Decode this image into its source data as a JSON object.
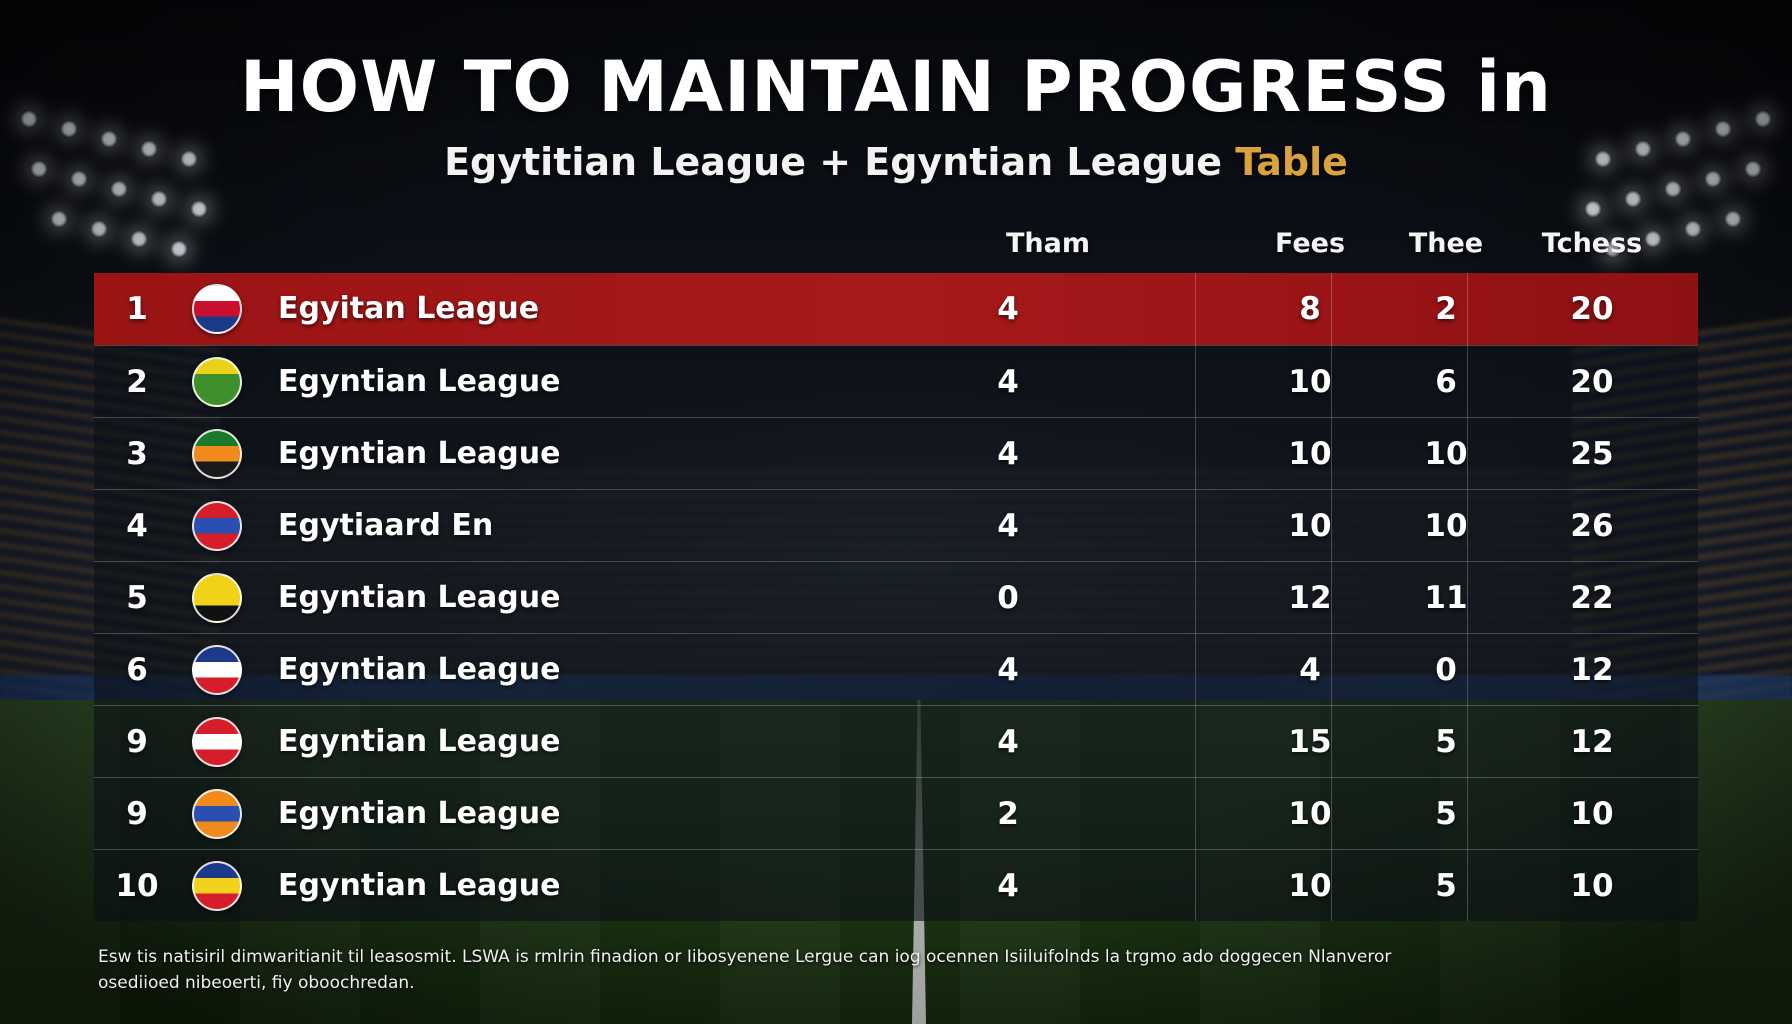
{
  "header": {
    "title": "HOW TO MAINTAIN PROGRESS in",
    "subtitle_main": "Egytitian League + Egyntian League ",
    "subtitle_accent": "Table"
  },
  "columns": [
    "Tham",
    "Fees",
    "Thee",
    "Tchess"
  ],
  "colors": {
    "highlight_row": "#a8191b",
    "accent": "#d9a23c"
  },
  "rows": [
    {
      "pos": "1",
      "team": "Egyitan League",
      "badge_colors": [
        "#ffffff",
        "#c8102e",
        "#1d3a8a"
      ],
      "v": [
        "4",
        "8",
        "2",
        "20"
      ]
    },
    {
      "pos": "2",
      "team": "Egyntian League",
      "badge_colors": [
        "#e8d21a",
        "#3f8f2a",
        "#3f8f2a"
      ],
      "v": [
        "4",
        "10",
        "6",
        "20"
      ]
    },
    {
      "pos": "3",
      "team": "Egyntian League",
      "badge_colors": [
        "#1a7a2a",
        "#f08a1c",
        "#1a1a1a"
      ],
      "v": [
        "4",
        "10",
        "10",
        "25"
      ]
    },
    {
      "pos": "4",
      "team": "Egytiaard En",
      "badge_colors": [
        "#d61e2a",
        "#2a4fb0",
        "#d61e2a"
      ],
      "v": [
        "4",
        "10",
        "10",
        "26"
      ]
    },
    {
      "pos": "5",
      "team": "Egyntian League",
      "badge_colors": [
        "#f0d21a",
        "#f0d21a",
        "#111111"
      ],
      "v": [
        "0",
        "12",
        "11",
        "22"
      ]
    },
    {
      "pos": "6",
      "team": "Egyntian League",
      "badge_colors": [
        "#1d3a8a",
        "#ffffff",
        "#d61e2a"
      ],
      "v": [
        "4",
        "4",
        "0",
        "12"
      ]
    },
    {
      "pos": "9",
      "team": "Egyntian League",
      "badge_colors": [
        "#d61e2a",
        "#ffffff",
        "#d61e2a"
      ],
      "v": [
        "4",
        "15",
        "5",
        "12"
      ]
    },
    {
      "pos": "9",
      "team": "Egyntian League",
      "badge_colors": [
        "#f08a1c",
        "#2a4fb0",
        "#f08a1c"
      ],
      "v": [
        "2",
        "10",
        "5",
        "10"
      ]
    },
    {
      "pos": "10",
      "team": "Egyntian League",
      "badge_colors": [
        "#1d3a8a",
        "#f0d21a",
        "#d61e2a"
      ],
      "v": [
        "4",
        "10",
        "5",
        "10"
      ]
    }
  ],
  "footer": {
    "line1": "Esw tis natisiril dimwaritianit til leasosmit. LSWA is rmlrin finadion or Iibosyenene Lergue can iog ocennen Isiiluifolnds la trgmo ado doggecen Nlanveror",
    "line2": "osediioed nibeoerti, fiy oboochredan."
  }
}
